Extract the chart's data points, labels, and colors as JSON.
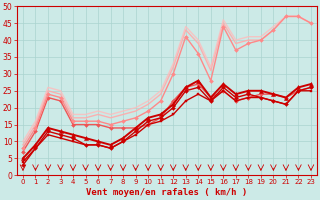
{
  "xlabel": "Vent moyen/en rafales ( km/h )",
  "xlim": [
    -0.5,
    23.5
  ],
  "ylim": [
    0,
    50
  ],
  "xticks": [
    0,
    1,
    2,
    3,
    4,
    5,
    6,
    7,
    8,
    9,
    10,
    11,
    12,
    13,
    14,
    15,
    16,
    17,
    18,
    19,
    20,
    21,
    22,
    23
  ],
  "yticks": [
    0,
    5,
    10,
    15,
    20,
    25,
    30,
    35,
    40,
    45,
    50
  ],
  "bg_color": "#cceae7",
  "grid_color": "#aad4d0",
  "series": [
    {
      "x": [
        0,
        1,
        2,
        3,
        4,
        5,
        6,
        7,
        8,
        9,
        10,
        11,
        12,
        13,
        14,
        15,
        16,
        17,
        18,
        19,
        20,
        21,
        22,
        23
      ],
      "y": [
        3,
        8,
        13,
        12,
        11,
        9,
        9,
        8,
        10,
        13,
        16,
        17,
        20,
        25,
        26,
        22,
        26,
        23,
        24,
        23,
        22,
        21,
        25,
        26
      ],
      "color": "#cc0000",
      "lw": 1.0,
      "marker": "D",
      "ms": 2.0,
      "alpha": 1.0,
      "zorder": 4
    },
    {
      "x": [
        0,
        1,
        2,
        3,
        4,
        5,
        6,
        7,
        8,
        9,
        10,
        11,
        12,
        13,
        14,
        15,
        16,
        17,
        18,
        19,
        20,
        21,
        22,
        23
      ],
      "y": [
        4,
        8,
        12,
        11,
        10,
        9,
        9,
        8,
        10,
        12,
        15,
        16,
        18,
        22,
        24,
        22,
        25,
        22,
        23,
        23,
        22,
        21,
        25,
        25
      ],
      "color": "#cc0000",
      "lw": 1.0,
      "marker": "s",
      "ms": 2.0,
      "alpha": 1.0,
      "zorder": 4
    },
    {
      "x": [
        0,
        1,
        2,
        3,
        4,
        5,
        6,
        7,
        8,
        9,
        10,
        11,
        12,
        13,
        14,
        15,
        16,
        17,
        18,
        19,
        20,
        21,
        22,
        23
      ],
      "y": [
        5,
        9,
        14,
        13,
        12,
        11,
        10,
        9,
        11,
        14,
        17,
        18,
        21,
        26,
        28,
        23,
        27,
        24,
        25,
        25,
        24,
        23,
        26,
        27
      ],
      "color": "#cc0000",
      "lw": 1.4,
      "marker": "^",
      "ms": 3.0,
      "alpha": 1.0,
      "zorder": 4
    },
    {
      "x": [
        0,
        1,
        2,
        3,
        4,
        5,
        6,
        7,
        8,
        9,
        10,
        11,
        12,
        13,
        14,
        15,
        16,
        17,
        18,
        19,
        20,
        21,
        22,
        23
      ],
      "y": [
        7,
        13,
        23,
        22,
        15,
        15,
        15,
        14,
        14,
        14,
        15,
        17,
        22,
        26,
        27,
        23,
        25,
        22,
        23,
        24,
        24,
        23,
        25,
        26
      ],
      "color": "#ee5555",
      "lw": 1.0,
      "marker": "D",
      "ms": 2.0,
      "alpha": 1.0,
      "zorder": 3
    },
    {
      "x": [
        0,
        1,
        2,
        3,
        4,
        5,
        6,
        7,
        8,
        9,
        10,
        11,
        12,
        13,
        14,
        15,
        16,
        17,
        18,
        19,
        20,
        21,
        22,
        23
      ],
      "y": [
        8,
        14,
        24,
        23,
        16,
        16,
        16,
        15,
        16,
        17,
        19,
        22,
        30,
        41,
        36,
        28,
        44,
        37,
        39,
        40,
        43,
        47,
        47,
        45
      ],
      "color": "#ff8888",
      "lw": 1.0,
      "marker": "D",
      "ms": 2.0,
      "alpha": 1.0,
      "zorder": 3
    },
    {
      "x": [
        0,
        1,
        2,
        3,
        4,
        5,
        6,
        7,
        8,
        9,
        10,
        11,
        12,
        13,
        14,
        15,
        16,
        17,
        18,
        19,
        20,
        21,
        22,
        23
      ],
      "y": [
        9,
        15,
        25,
        24,
        17,
        17,
        18,
        17,
        18,
        19,
        21,
        24,
        32,
        43,
        39,
        31,
        45,
        39,
        40,
        40,
        43,
        47,
        47,
        45
      ],
      "color": "#ffaaaa",
      "lw": 1.0,
      "marker": null,
      "ms": 0,
      "alpha": 0.9,
      "zorder": 2
    },
    {
      "x": [
        0,
        1,
        2,
        3,
        4,
        5,
        6,
        7,
        8,
        9,
        10,
        11,
        12,
        13,
        14,
        15,
        16,
        17,
        18,
        19,
        20,
        21,
        22,
        23
      ],
      "y": [
        10,
        16,
        26,
        25,
        18,
        18,
        19,
        18,
        19,
        20,
        22,
        25,
        33,
        44,
        40,
        32,
        46,
        40,
        41,
        41,
        44,
        47,
        47,
        45
      ],
      "color": "#ffbbbb",
      "lw": 1.0,
      "marker": null,
      "ms": 0,
      "alpha": 0.8,
      "zorder": 2
    }
  ],
  "tick_label_size": 5.5,
  "xlabel_size": 6.5
}
